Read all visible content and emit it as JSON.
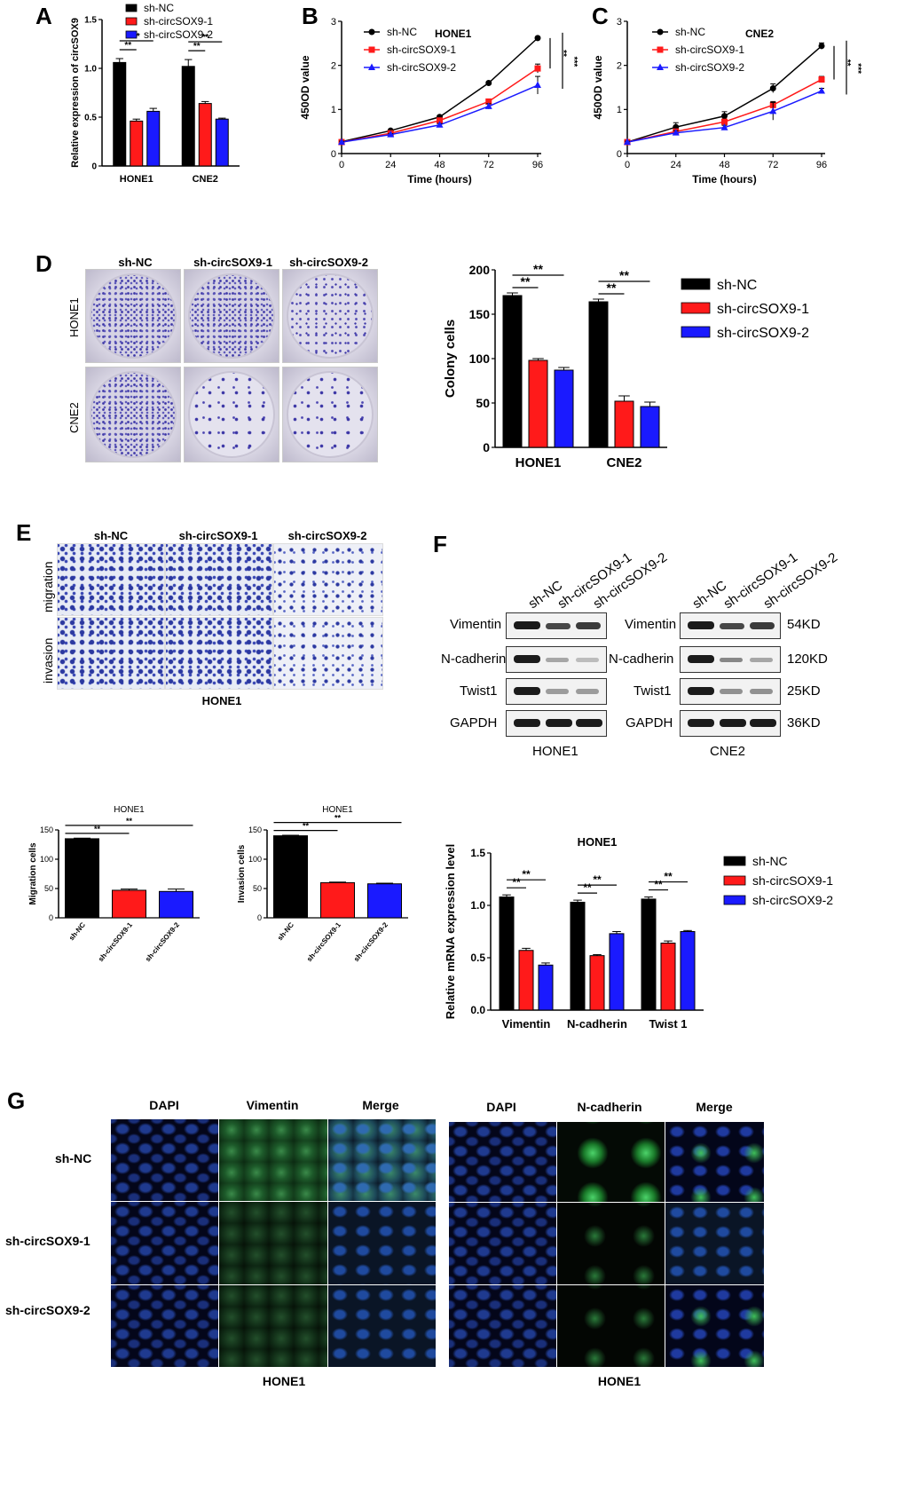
{
  "panel_labels": {
    "A": "A",
    "B": "B",
    "C": "C",
    "D": "D",
    "E": "E",
    "F": "F",
    "G": "G"
  },
  "colors": {
    "nc": "#000000",
    "sh1": "#ff1a1a",
    "sh2": "#1a1aff"
  },
  "legend": [
    "sh-NC",
    "sh-circSOX9-1",
    "sh-circSOX9-2"
  ],
  "chart_data": [
    {
      "id": "A",
      "type": "bar",
      "ylabel": "Relative expression of circSOX9",
      "categories": [
        "HONE1",
        "CNE2"
      ],
      "ylim": [
        0,
        1.5
      ],
      "yticks": [
        0,
        0.5,
        1.0,
        1.5
      ],
      "yticklabels": [
        "0",
        "0.5",
        "1.0",
        "1.5"
      ],
      "series": [
        {
          "name": "sh-NC",
          "values": [
            1.06,
            1.02
          ],
          "err": [
            0.04,
            0.07
          ]
        },
        {
          "name": "sh-circSOX9-1",
          "values": [
            0.46,
            0.64
          ],
          "err": [
            0.02,
            0.02
          ]
        },
        {
          "name": "sh-circSOX9-2",
          "values": [
            0.56,
            0.48
          ],
          "err": [
            0.03,
            0.01
          ]
        }
      ],
      "sig": [
        "**",
        "**",
        "**",
        "**"
      ]
    },
    {
      "id": "B",
      "type": "line",
      "title": "HONE1",
      "xlabel": "Time (hours)",
      "ylabel": "450OD value",
      "x": [
        0,
        24,
        48,
        72,
        96
      ],
      "ylim": [
        0,
        3
      ],
      "yticks": [
        0,
        1,
        2,
        3
      ],
      "series": [
        {
          "name": "sh-NC",
          "values": [
            0.27,
            0.52,
            0.83,
            1.6,
            2.62
          ],
          "err": [
            0.02,
            0.02,
            0.03,
            0.03,
            0.03
          ]
        },
        {
          "name": "sh-circSOX9-1",
          "values": [
            0.26,
            0.46,
            0.75,
            1.18,
            1.93
          ],
          "err": [
            0.02,
            0.02,
            0.03,
            0.05,
            0.1
          ]
        },
        {
          "name": "sh-circSOX9-2",
          "values": [
            0.26,
            0.43,
            0.65,
            1.07,
            1.55
          ],
          "err": [
            0.02,
            0.02,
            0.03,
            0.06,
            0.2
          ]
        }
      ],
      "sig": [
        "**",
        "***"
      ]
    },
    {
      "id": "C",
      "type": "line",
      "title": "CNE2",
      "xlabel": "Time (hours)",
      "ylabel": "450OD value",
      "x": [
        0,
        24,
        48,
        72,
        96
      ],
      "ylim": [
        0,
        3
      ],
      "yticks": [
        0,
        1,
        2,
        3
      ],
      "series": [
        {
          "name": "sh-NC",
          "values": [
            0.26,
            0.6,
            0.85,
            1.48,
            2.44
          ],
          "err": [
            0.02,
            0.1,
            0.1,
            0.1,
            0.07
          ]
        },
        {
          "name": "sh-circSOX9-1",
          "values": [
            0.26,
            0.5,
            0.72,
            1.1,
            1.68
          ],
          "err": [
            0.02,
            0.05,
            0.06,
            0.08,
            0.07
          ]
        },
        {
          "name": "sh-circSOX9-2",
          "values": [
            0.26,
            0.47,
            0.59,
            0.96,
            1.42
          ],
          "err": [
            0.02,
            0.05,
            0.05,
            0.2,
            0.06
          ]
        }
      ],
      "sig": [
        "**",
        "***"
      ]
    },
    {
      "id": "D",
      "type": "bar",
      "ylabel": "Colony cells",
      "categories": [
        "HONE1",
        "CNE2"
      ],
      "ylim": [
        0,
        200
      ],
      "yticks": [
        0,
        50,
        100,
        150,
        200
      ],
      "series": [
        {
          "name": "sh-NC",
          "values": [
            171,
            164
          ],
          "err": [
            3,
            3
          ]
        },
        {
          "name": "sh-circSOX9-1",
          "values": [
            98,
            52
          ],
          "err": [
            2,
            6
          ]
        },
        {
          "name": "sh-circSOX9-2",
          "values": [
            87,
            46
          ],
          "err": [
            3,
            5
          ]
        }
      ],
      "sig": [
        "**",
        "**",
        "**",
        "**"
      ]
    },
    {
      "id": "E1",
      "type": "bar",
      "title": "HONE1",
      "ylabel": "Migration cells",
      "categories": [
        "sh-NC",
        "sh-circSOX9-1",
        "sh-circSOX9-2"
      ],
      "ylim": [
        0,
        150
      ],
      "yticks": [
        0,
        50,
        100,
        150
      ],
      "values": [
        135,
        47,
        45
      ],
      "err": [
        1,
        2,
        4
      ],
      "sig": [
        "**",
        "**"
      ]
    },
    {
      "id": "E2",
      "type": "bar",
      "title": "HONE1",
      "ylabel": "Invasion cells",
      "categories": [
        "sh-NC",
        "sh-circSOX9-1",
        "sh-circSOX9-2"
      ],
      "ylim": [
        0,
        150
      ],
      "yticks": [
        0,
        50,
        100,
        150
      ],
      "values": [
        140,
        60,
        58
      ],
      "err": [
        1,
        1,
        1
      ],
      "sig": [
        "**",
        "**"
      ]
    },
    {
      "id": "F2",
      "type": "bar",
      "title": "HONE1",
      "ylabel": "Relative mRNA expression level",
      "categories": [
        "Vimentin",
        "N-cadherin",
        "Twist 1"
      ],
      "ylim": [
        0,
        1.5
      ],
      "yticks": [
        0,
        0.5,
        1.0,
        1.5
      ],
      "yticklabels": [
        "0.0",
        "0.5",
        "1.0",
        "1.5"
      ],
      "series": [
        {
          "name": "sh-NC",
          "values": [
            1.08,
            1.03,
            1.06
          ],
          "err": [
            0.02,
            0.02,
            0.02
          ]
        },
        {
          "name": "sh-circSOX9-1",
          "values": [
            0.57,
            0.52,
            0.64
          ],
          "err": [
            0.02,
            0.01,
            0.02
          ]
        },
        {
          "name": "sh-circSOX9-2",
          "values": [
            0.43,
            0.73,
            0.75
          ],
          "err": [
            0.02,
            0.02,
            0.01
          ]
        }
      ],
      "sig": [
        "**",
        "**",
        "**",
        "**",
        "**",
        "**"
      ]
    }
  ],
  "panelD": {
    "headers": [
      "sh-NC",
      "sh-circSOX9-1",
      "sh-circSOX9-2"
    ],
    "rows": [
      "HONE1",
      "CNE2"
    ]
  },
  "panelE": {
    "headers": [
      "sh-NC",
      "sh-circSOX9-1",
      "sh-circSOX9-2"
    ],
    "rows": [
      "migration",
      "invasion"
    ],
    "caption": "HONE1"
  },
  "panelF": {
    "lanes": [
      "sh-NC",
      "sh-circSOX9-1",
      "sh-circSOX9-2"
    ],
    "proteins": [
      "Vimentin",
      "N-cadherin",
      "Twist1",
      "GAPDH"
    ],
    "sizes": [
      "54KD",
      "120KD",
      "25KD",
      "36KD"
    ],
    "cells": [
      "HONE1",
      "CNE2"
    ]
  },
  "panelG": {
    "headers_left": [
      "DAPI",
      "Vimentin",
      "Merge"
    ],
    "headers_right": [
      "DAPI",
      "N-cadherin",
      "Merge"
    ],
    "rows": [
      "sh-NC",
      "sh-circSOX9-1",
      "sh-circSOX9-2"
    ],
    "captions": [
      "HONE1",
      "HONE1"
    ]
  }
}
